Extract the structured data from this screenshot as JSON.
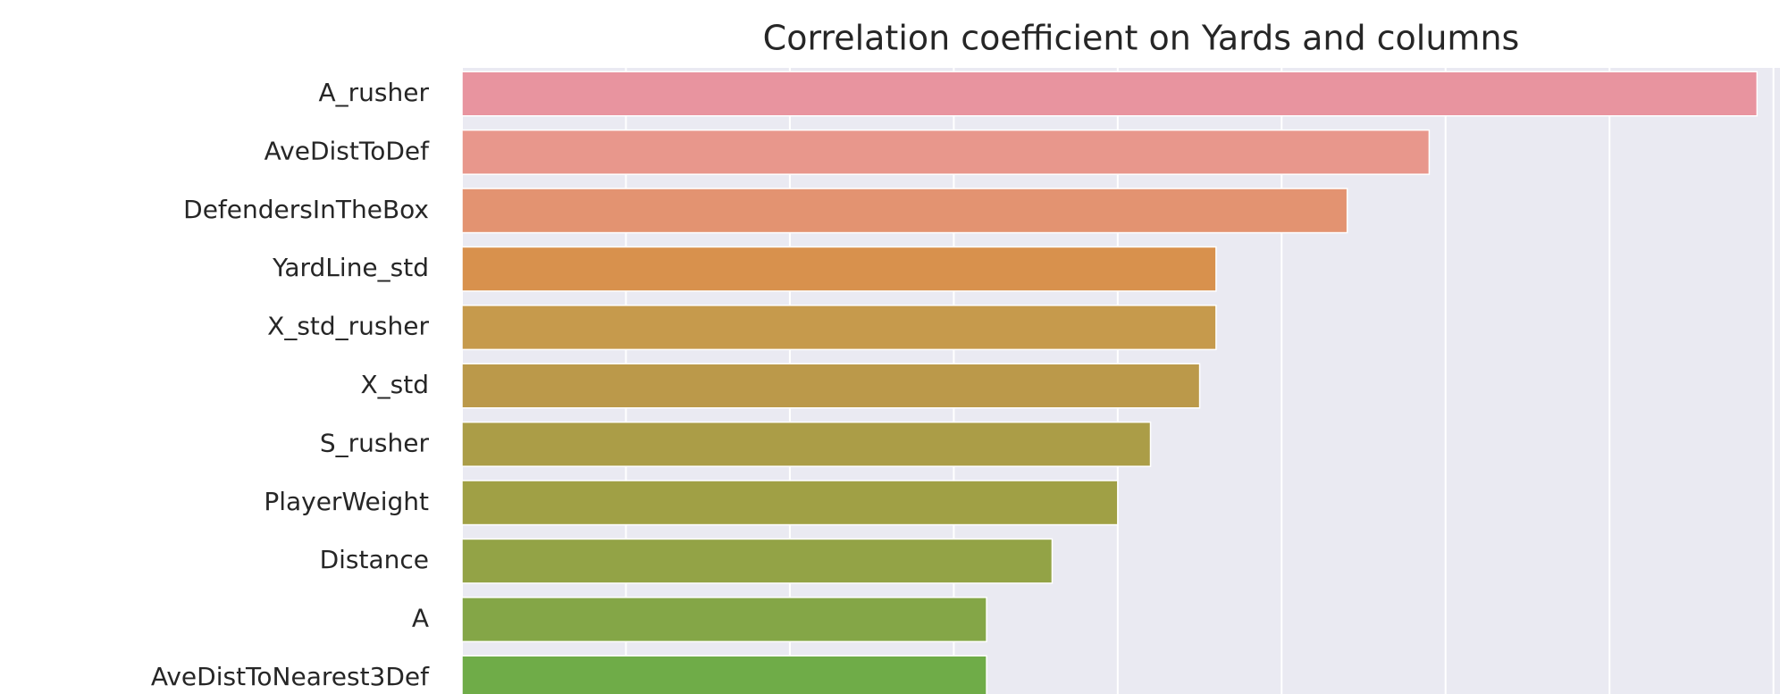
{
  "chart_data": {
    "type": "barh",
    "title": "Correlation coefficient on Yards and columns",
    "categories": [
      "A_rusher",
      "AveDistToDef",
      "DefendersInTheBox",
      "YardLine_std",
      "X_std_rusher",
      "X_std",
      "S_rusher",
      "PlayerWeight",
      "Distance",
      "A",
      "AveDistToNearest3Def"
    ],
    "values": [
      0.079,
      0.059,
      0.054,
      0.046,
      0.046,
      0.045,
      0.042,
      0.04,
      0.036,
      0.032,
      0.032
    ],
    "colors": [
      "#e8949f",
      "#e8978c",
      "#e39371",
      "#d8914d",
      "#c69a4c",
      "#bb994a",
      "#ab9d47",
      "#a0a045",
      "#93a346",
      "#84a647",
      "#6fac48"
    ],
    "xlim": [
      0,
      0.0804
    ],
    "xticks": [
      0,
      0.01,
      0.02,
      0.03,
      0.04,
      0.05,
      0.06,
      0.07,
      0.08
    ],
    "grid": true
  }
}
